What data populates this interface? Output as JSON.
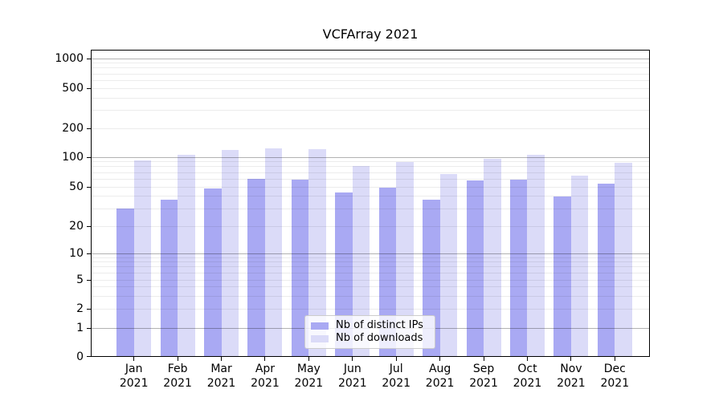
{
  "chart_data": {
    "type": "bar",
    "title": "VCFArray 2021",
    "categories": [
      "Jan",
      "Feb",
      "Mar",
      "Apr",
      "May",
      "Jun",
      "Jul",
      "Aug",
      "Sep",
      "Oct",
      "Nov",
      "Dec"
    ],
    "year": "2021",
    "series": [
      {
        "name": "Nb of distinct IPs",
        "color": "#a9a9f3",
        "values": [
          30,
          37,
          48,
          60,
          59,
          44,
          49,
          37,
          58,
          59,
          40,
          54
        ]
      },
      {
        "name": "Nb of downloads",
        "color": "#dbdbf8",
        "values": [
          92,
          106,
          118,
          123,
          121,
          82,
          89,
          67,
          96,
          106,
          65,
          87
        ]
      }
    ],
    "y_axis": {
      "scale": "symlog",
      "ticks": [
        0,
        1,
        2,
        5,
        10,
        20,
        50,
        100,
        200,
        500,
        1000
      ],
      "range": [
        0,
        1230
      ]
    },
    "grid": true,
    "legend_position": "lower center"
  }
}
